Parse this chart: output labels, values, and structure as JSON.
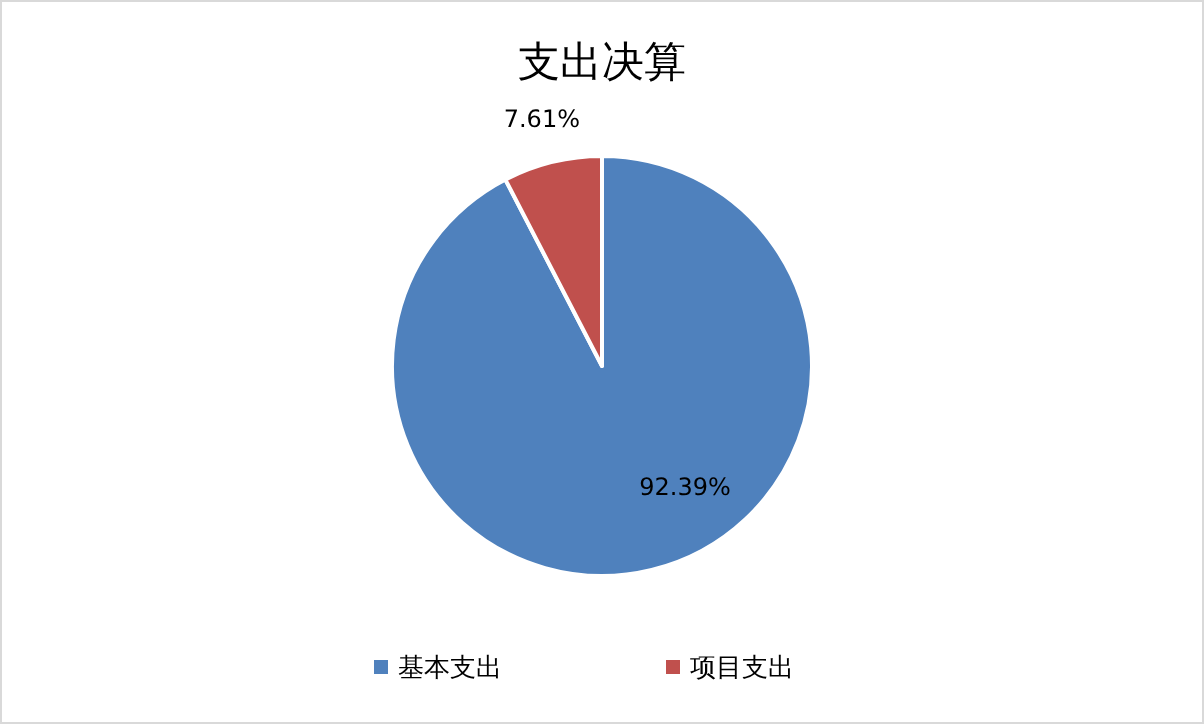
{
  "chart_data": {
    "type": "pie",
    "title": "支出决算",
    "categories": [
      "基本支出",
      "项目支出"
    ],
    "values": [
      92.39,
      7.61
    ],
    "colors": [
      "#4f81bd",
      "#c0504d"
    ],
    "value_labels": [
      "92.39%",
      "7.61%"
    ],
    "legend": "bottom"
  }
}
